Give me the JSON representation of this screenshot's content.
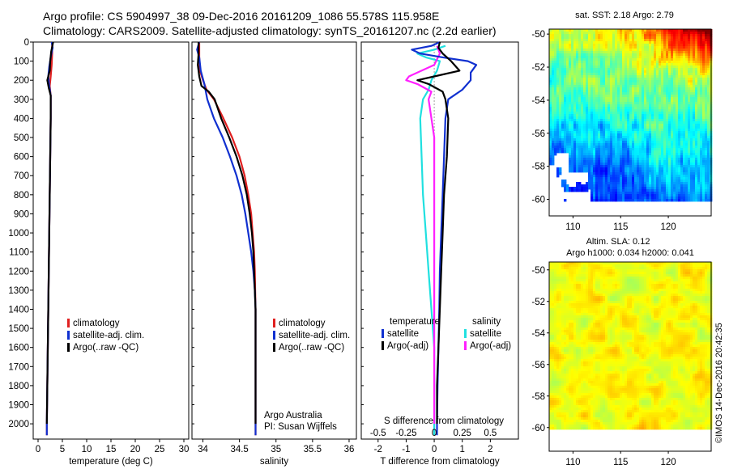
{
  "header": {
    "line1": "Argo profile: CS 5904997_38 09-Dec-2016 20161209_1086 55.578S 115.958E",
    "line2": "Climatology: CARS2009. Satellite-adjusted climatology: synTS_20161207.nc (2.2d earlier)"
  },
  "credit": "©IMOS 14-Dec-2016 20:42:35",
  "colors": {
    "climatology": "#e02020",
    "satellite": "#1030d0",
    "argo": "#000000",
    "cyan": "#20e0e0",
    "magenta": "#ff20ff",
    "grey": "#a0a0a0"
  },
  "chart_data": [
    {
      "type": "line",
      "id": "temperature",
      "xlabel": "temperature (deg C)",
      "xlim": [
        -1,
        31
      ],
      "ylim": [
        2080,
        0
      ],
      "xticks": [
        "0",
        "5",
        "10",
        "15",
        "20",
        "25",
        "30"
      ],
      "xtick_values": [
        0,
        5,
        10,
        15,
        20,
        25,
        30
      ],
      "yticks": [
        "0",
        "100",
        "200",
        "300",
        "400",
        "500",
        "600",
        "700",
        "800",
        "900",
        "1000",
        "1100",
        "1200",
        "1300",
        "1400",
        "1500",
        "1600",
        "1700",
        "1800",
        "1900",
        "2000"
      ],
      "ytick_values": [
        0,
        100,
        200,
        300,
        400,
        500,
        600,
        700,
        800,
        900,
        1000,
        1100,
        1200,
        1300,
        1400,
        1500,
        1600,
        1700,
        1800,
        1900,
        2000
      ],
      "legend": [
        {
          "label": "climatology",
          "color": "#e02020"
        },
        {
          "label": "satellite-adj. clim.",
          "color": "#1030d0"
        },
        {
          "label": "Argo(..raw -QC)",
          "color": "#000000"
        }
      ],
      "series": [
        {
          "name": "climatology",
          "color": "#e02020",
          "width": 2.2,
          "points": [
            [
              2.9,
              0
            ],
            [
              2.9,
              60
            ],
            [
              2.8,
              120
            ],
            [
              2.6,
              180
            ],
            [
              2.4,
              230
            ],
            [
              2.6,
              280
            ],
            [
              2.6,
              400
            ],
            [
              2.5,
              600
            ],
            [
              2.4,
              800
            ],
            [
              2.3,
              1000
            ],
            [
              2.2,
              1200
            ],
            [
              2.1,
              1400
            ],
            [
              2.0,
              1600
            ],
            [
              1.9,
              1800
            ],
            [
              1.8,
              2000
            ],
            [
              1.8,
              2060
            ]
          ]
        },
        {
          "name": "satellite-adj. clim.",
          "color": "#1030d0",
          "width": 2.2,
          "points": [
            [
              2.8,
              0
            ],
            [
              3.0,
              30
            ],
            [
              2.6,
              80
            ],
            [
              2.3,
              130
            ],
            [
              2.1,
              180
            ],
            [
              2.3,
              230
            ],
            [
              2.6,
              280
            ],
            [
              2.6,
              400
            ],
            [
              2.5,
              600
            ],
            [
              2.4,
              800
            ],
            [
              2.3,
              1000
            ],
            [
              2.2,
              1200
            ],
            [
              2.1,
              1400
            ],
            [
              2.0,
              1600
            ],
            [
              1.9,
              1800
            ],
            [
              1.8,
              2000
            ],
            [
              1.8,
              2060
            ]
          ]
        },
        {
          "name": "Argo(..raw -QC)",
          "color": "#000000",
          "width": 2.2,
          "points": [
            [
              3.1,
              0
            ],
            [
              2.7,
              50
            ],
            [
              2.5,
              100
            ],
            [
              2.4,
              150
            ],
            [
              1.9,
              200
            ],
            [
              2.2,
              240
            ],
            [
              2.6,
              280
            ],
            [
              2.6,
              400
            ],
            [
              2.5,
              600
            ],
            [
              2.4,
              800
            ],
            [
              2.3,
              1000
            ],
            [
              2.2,
              1200
            ],
            [
              2.1,
              1400
            ],
            [
              2.0,
              1600
            ],
            [
              1.9,
              1800
            ],
            [
              1.8,
              2000
            ]
          ]
        }
      ]
    },
    {
      "type": "line",
      "id": "salinity",
      "xlabel": "salinity",
      "xlim": [
        33.85,
        36.1
      ],
      "ylim": [
        2080,
        0
      ],
      "xticks": [
        "34",
        "34.5",
        "35",
        "35.5",
        "36"
      ],
      "xtick_values": [
        34,
        34.5,
        35,
        35.5,
        36
      ],
      "legend": [
        {
          "label": "climatology",
          "color": "#e02020"
        },
        {
          "label": "satellite-adj. clim.",
          "color": "#1030d0"
        },
        {
          "label": "Argo(..raw -QC)",
          "color": "#000000"
        }
      ],
      "annotation": [
        "Argo Australia",
        "PI: Susan Wijffels"
      ],
      "series": [
        {
          "name": "climatology",
          "color": "#e02020",
          "width": 2.2,
          "points": [
            [
              33.95,
              0
            ],
            [
              33.95,
              80
            ],
            [
              33.96,
              150
            ],
            [
              34.0,
              200
            ],
            [
              34.05,
              250
            ],
            [
              34.15,
              300
            ],
            [
              34.28,
              400
            ],
            [
              34.4,
              500
            ],
            [
              34.5,
              600
            ],
            [
              34.57,
              700
            ],
            [
              34.62,
              800
            ],
            [
              34.66,
              900
            ],
            [
              34.68,
              1000
            ],
            [
              34.7,
              1100
            ],
            [
              34.71,
              1200
            ],
            [
              34.72,
              1400
            ],
            [
              34.72,
              1600
            ],
            [
              34.72,
              2060
            ]
          ]
        },
        {
          "name": "satellite-adj. clim.",
          "color": "#1030d0",
          "width": 2.2,
          "points": [
            [
              33.95,
              0
            ],
            [
              33.92,
              40
            ],
            [
              33.95,
              80
            ],
            [
              33.97,
              150
            ],
            [
              34.02,
              220
            ],
            [
              34.06,
              300
            ],
            [
              34.15,
              400
            ],
            [
              34.27,
              500
            ],
            [
              34.37,
              600
            ],
            [
              34.46,
              700
            ],
            [
              34.53,
              800
            ],
            [
              34.58,
              900
            ],
            [
              34.62,
              1000
            ],
            [
              34.66,
              1100
            ],
            [
              34.69,
              1200
            ],
            [
              34.71,
              1300
            ],
            [
              34.72,
              1400
            ],
            [
              34.72,
              1600
            ],
            [
              34.72,
              2060
            ]
          ]
        },
        {
          "name": "Argo(..raw -QC)",
          "color": "#000000",
          "width": 2.2,
          "points": [
            [
              33.94,
              0
            ],
            [
              33.94,
              60
            ],
            [
              33.93,
              120
            ],
            [
              33.95,
              180
            ],
            [
              33.98,
              230
            ],
            [
              34.08,
              260
            ],
            [
              34.16,
              300
            ],
            [
              34.25,
              400
            ],
            [
              34.36,
              500
            ],
            [
              34.46,
              600
            ],
            [
              34.54,
              700
            ],
            [
              34.6,
              800
            ],
            [
              34.64,
              900
            ],
            [
              34.67,
              1000
            ],
            [
              34.69,
              1100
            ],
            [
              34.7,
              1200
            ],
            [
              34.71,
              1300
            ],
            [
              34.72,
              1400
            ],
            [
              34.72,
              1600
            ],
            [
              34.72,
              2000
            ]
          ]
        }
      ]
    },
    {
      "type": "line",
      "id": "difference",
      "xlabel": "T difference from climatology",
      "top_axis_label": "S difference from climatology",
      "xlim": [
        -2.6,
        3.0
      ],
      "ylim": [
        2080,
        0
      ],
      "xticks": [
        "-2",
        "-1",
        "0",
        "1",
        "2"
      ],
      "xtick_values": [
        -2,
        -1,
        0,
        1,
        2
      ],
      "s_ticks": [
        "-0.5",
        "-0.25",
        "0",
        "0.25",
        "0.5"
      ],
      "s_tick_values": [
        -0.5,
        -0.25,
        0,
        0.25,
        0.5
      ],
      "s_scale": 4,
      "legend_groups": [
        {
          "title": "temperature",
          "items": [
            {
              "label": "satellite",
              "color": "#1030d0"
            },
            {
              "label": "Argo(-adj)",
              "color": "#000000"
            }
          ]
        },
        {
          "title": "salinity",
          "items": [
            {
              "label": "satellite",
              "color": "#20e0e0"
            },
            {
              "label": "Argo(-adj)",
              "color": "#ff20ff"
            }
          ]
        }
      ],
      "series": [
        {
          "name": "zero",
          "color": "#a0a0a0",
          "width": 1,
          "dash": "2,2",
          "points": [
            [
              0,
              0
            ],
            [
              0,
              2060
            ]
          ]
        },
        {
          "name": "S satellite",
          "color": "#20e0e0",
          "width": 2.2,
          "points": [
            [
              0.4,
              20
            ],
            [
              0.0,
              40
            ],
            [
              -0.6,
              60
            ],
            [
              -0.3,
              80
            ],
            [
              0.2,
              100
            ],
            [
              0.1,
              150
            ],
            [
              -0.1,
              200
            ],
            [
              -0.2,
              250
            ],
            [
              -0.4,
              300
            ],
            [
              -0.5,
              400
            ],
            [
              -0.45,
              600
            ],
            [
              -0.4,
              800
            ],
            [
              -0.3,
              1000
            ],
            [
              -0.2,
              1200
            ],
            [
              -0.1,
              1400
            ],
            [
              0,
              1600
            ],
            [
              0,
              2000
            ],
            [
              0,
              2060
            ]
          ]
        },
        {
          "name": "S Argo(-adj)",
          "color": "#ff20ff",
          "width": 2.2,
          "points": [
            [
              0.1,
              20
            ],
            [
              0.2,
              60
            ],
            [
              0.0,
              120
            ],
            [
              -0.9,
              180
            ],
            [
              -1.0,
              200
            ],
            [
              -0.6,
              220
            ],
            [
              -0.1,
              260
            ],
            [
              -0.2,
              300
            ],
            [
              -0.1,
              400
            ],
            [
              0,
              500
            ],
            [
              0,
              2000
            ]
          ]
        },
        {
          "name": "T satellite",
          "color": "#1030d0",
          "width": 2.2,
          "points": [
            [
              0.2,
              0
            ],
            [
              -0.1,
              20
            ],
            [
              -0.8,
              40
            ],
            [
              -0.5,
              60
            ],
            [
              0.3,
              80
            ],
            [
              1.2,
              100
            ],
            [
              1.5,
              120
            ],
            [
              1.3,
              160
            ],
            [
              1.3,
              200
            ],
            [
              1.0,
              250
            ],
            [
              0.5,
              300
            ],
            [
              0.4,
              400
            ],
            [
              0.35,
              600
            ],
            [
              0.3,
              800
            ],
            [
              0.25,
              1000
            ],
            [
              0.2,
              1200
            ],
            [
              0.18,
              1400
            ],
            [
              0.15,
              1600
            ],
            [
              0.12,
              1800
            ],
            [
              0.1,
              2000
            ],
            [
              0.1,
              2060
            ]
          ]
        },
        {
          "name": "T Argo(-adj)",
          "color": "#000000",
          "width": 2.2,
          "points": [
            [
              0.2,
              0
            ],
            [
              0.15,
              30
            ],
            [
              0.3,
              60
            ],
            [
              0.6,
              100
            ],
            [
              0.9,
              150
            ],
            [
              0.0,
              180
            ],
            [
              -0.6,
              200
            ],
            [
              -0.2,
              220
            ],
            [
              0.3,
              260
            ],
            [
              0.4,
              300
            ],
            [
              0.5,
              400
            ],
            [
              0.45,
              600
            ],
            [
              0.35,
              800
            ],
            [
              0.3,
              1000
            ],
            [
              0.25,
              1200
            ],
            [
              0.2,
              1400
            ],
            [
              0.15,
              1600
            ],
            [
              0.1,
              1800
            ],
            [
              0.1,
              2000
            ]
          ]
        }
      ]
    },
    {
      "type": "heatmap",
      "id": "sst-map",
      "title": "sat. SST: 2.18 Argo: 2.79",
      "xticks": [
        "110",
        "115",
        "120"
      ],
      "xtick_values": [
        110,
        115,
        120
      ],
      "yticks": [
        "-50",
        "-52",
        "-54",
        "-56",
        "-58",
        "-60"
      ],
      "ytick_values": [
        -50,
        -52,
        -54,
        -56,
        -58,
        -60
      ],
      "xlim": [
        107.5,
        124.5
      ],
      "ylim": [
        -61,
        -49.7
      ],
      "data_bottom": -60
    },
    {
      "type": "heatmap",
      "id": "sla-map",
      "title_lines": [
        "Altim. SLA: 0.12",
        "Argo h1000: 0.034 h2000: 0.041"
      ],
      "xticks": [
        "110",
        "115",
        "120"
      ],
      "xtick_values": [
        110,
        115,
        120
      ],
      "yticks": [
        "-50",
        "-52",
        "-54",
        "-56",
        "-58",
        "-60"
      ],
      "ytick_values": [
        -50,
        -52,
        -54,
        -56,
        -58,
        -60
      ],
      "xlim": [
        107.5,
        124.5
      ],
      "ylim": [
        -61.5,
        -49.5
      ],
      "data_bottom": -60
    }
  ]
}
